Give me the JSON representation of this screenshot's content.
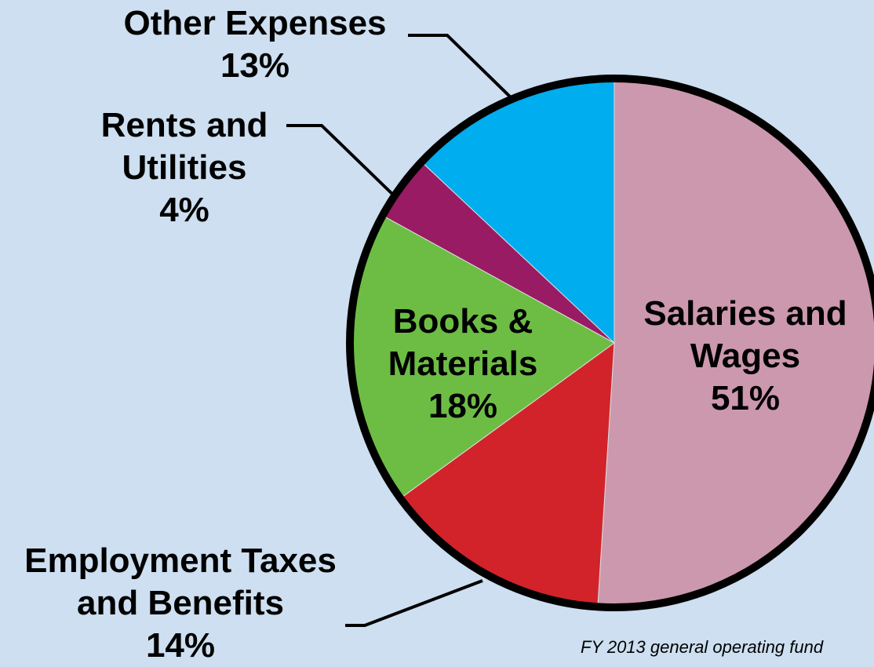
{
  "chart_data": {
    "type": "pie",
    "categories": [
      "Salaries and Wages",
      "Employment Taxes and Benefits",
      "Books & Materials",
      "Rents and Utilities",
      "Other Expenses"
    ],
    "values": [
      51,
      14,
      18,
      4,
      13
    ],
    "value_labels": [
      "51%",
      "14%",
      "18%",
      "4%",
      "13%"
    ],
    "colors": [
      "#cc98ad",
      "#d2232a",
      "#6dbd45",
      "#981b64",
      "#00adee"
    ],
    "note": "FY 2013 general operating fund"
  }
}
